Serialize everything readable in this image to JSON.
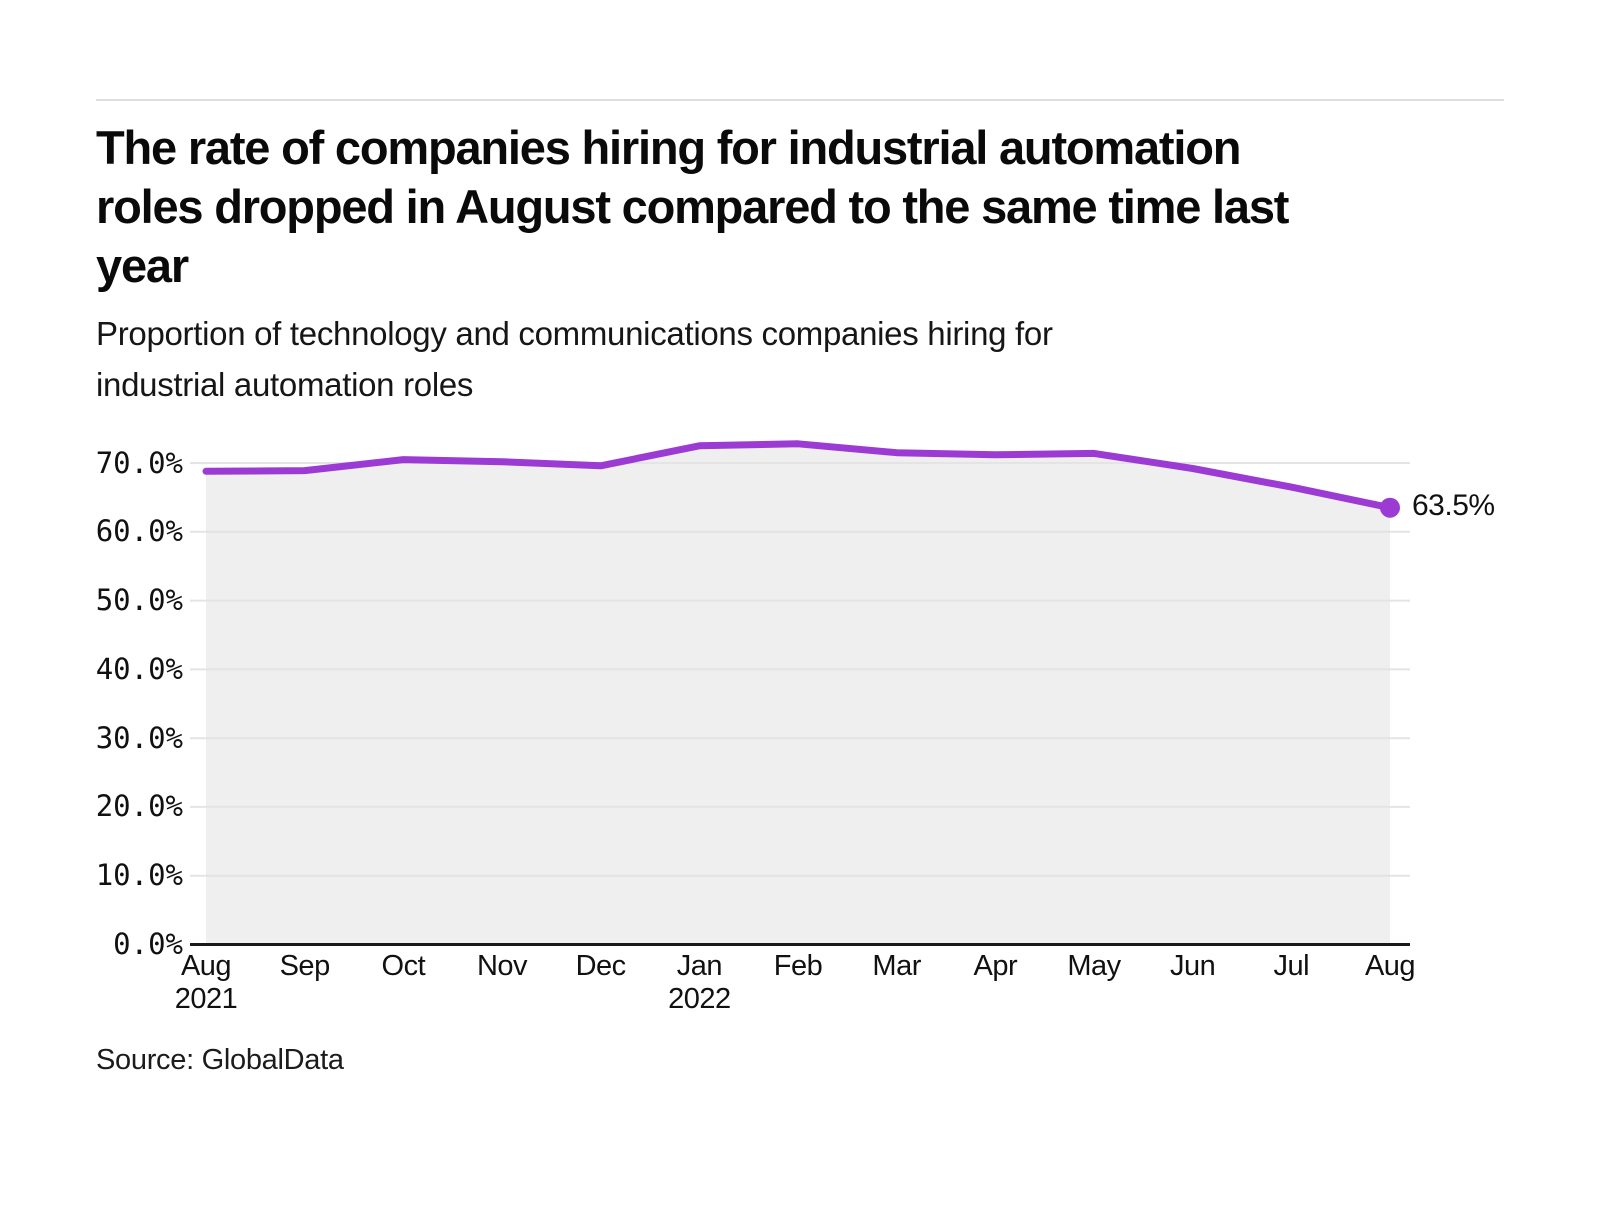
{
  "header": {
    "title_lines": [
      "The rate of companies hiring for industrial automation",
      "roles dropped in August compared to the same time last",
      "year"
    ],
    "subtitle_lines": [
      "Proportion of technology and communications companies hiring for",
      "industrial automation roles"
    ]
  },
  "chart_data": {
    "type": "area",
    "title": "The rate of companies hiring for industrial automation roles dropped in August compared to the same time last year",
    "subtitle": "Proportion of technology and communications companies hiring for industrial automation roles",
    "x_labels": [
      [
        "Aug",
        "2021"
      ],
      [
        "Sep"
      ],
      [
        "Oct"
      ],
      [
        "Nov"
      ],
      [
        "Dec"
      ],
      [
        "Jan",
        "2022"
      ],
      [
        "Feb"
      ],
      [
        "Mar"
      ],
      [
        "Apr"
      ],
      [
        "May"
      ],
      [
        "Jun"
      ],
      [
        "Jul"
      ],
      [
        "Aug"
      ]
    ],
    "series": [
      {
        "name": "Proportion of companies hiring for industrial automation roles",
        "values": [
          68.8,
          68.9,
          70.5,
          70.2,
          69.6,
          72.5,
          72.8,
          71.5,
          71.2,
          71.4,
          69.2,
          66.5,
          63.5
        ]
      }
    ],
    "end_label": "63.5%",
    "y_ticks": [
      {
        "v": 70,
        "label": "70.0%"
      },
      {
        "v": 60,
        "label": "60.0%"
      },
      {
        "v": 50,
        "label": "50.0%"
      },
      {
        "v": 40,
        "label": "40.0%"
      },
      {
        "v": 30,
        "label": "30.0%"
      },
      {
        "v": 20,
        "label": "20.0%"
      },
      {
        "v": 10,
        "label": "10.0%"
      },
      {
        "v": 0,
        "label": "0.0%"
      }
    ],
    "ylim": [
      0,
      75
    ],
    "grid": "horizontal",
    "legend": "none",
    "colors": {
      "line": "#9C3BD4",
      "area": "#EFEFEF",
      "grid": "#E4E4E4",
      "axis": "#1A1A1A",
      "text": "#111111"
    }
  },
  "footer": {
    "source": "Source: GlobalData"
  }
}
